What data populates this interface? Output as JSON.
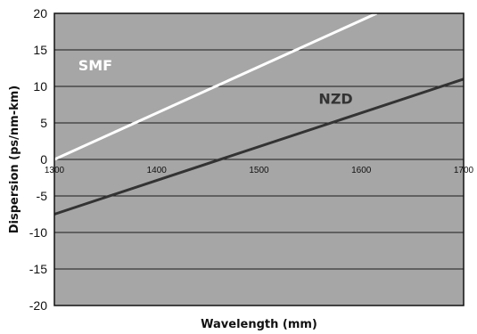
{
  "chart_data": {
    "type": "line",
    "title": "",
    "xlabel": "Wavelength (mm)",
    "ylabel": "Dispersion (ps/nm-km)",
    "xlim": [
      1300,
      1700
    ],
    "ylim": [
      -20,
      20
    ],
    "x_ticks": [
      "1300",
      "1400",
      "1500",
      "1600",
      "1700"
    ],
    "y_ticks": [
      "20",
      "15",
      "10",
      "5",
      "0",
      "-5",
      "-10",
      "-15",
      "-20"
    ],
    "grid": "horizontal",
    "plot_background": "#a6a6a6",
    "series": [
      {
        "name": "SMF",
        "color": "#ffffff",
        "x": [
          1300,
          1615
        ],
        "y": [
          0,
          20
        ]
      },
      {
        "name": "NZD",
        "color": "#333333",
        "x": [
          1300,
          1700
        ],
        "y": [
          -7.5,
          11
        ]
      }
    ]
  }
}
